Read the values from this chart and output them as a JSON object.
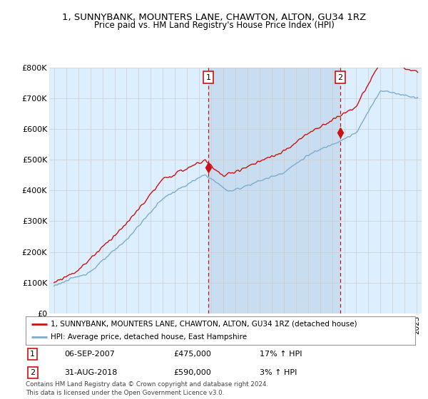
{
  "title": "1, SUNNYBANK, MOUNTERS LANE, CHAWTON, ALTON, GU34 1RZ",
  "subtitle": "Price paid vs. HM Land Registry's House Price Index (HPI)",
  "legend_line1": "1, SUNNYBANK, MOUNTERS LANE, CHAWTON, ALTON, GU34 1RZ (detached house)",
  "legend_line2": "HPI: Average price, detached house, East Hampshire",
  "annotation1_label": "1",
  "annotation1_date": "06-SEP-2007",
  "annotation1_price": "£475,000",
  "annotation1_hpi": "17% ↑ HPI",
  "annotation2_label": "2",
  "annotation2_date": "31-AUG-2018",
  "annotation2_price": "£590,000",
  "annotation2_hpi": "3% ↑ HPI",
  "footer": "Contains HM Land Registry data © Crown copyright and database right 2024.\nThis data is licensed under the Open Government Licence v3.0.",
  "hpi_color": "#7aadcf",
  "price_color": "#cc1111",
  "bg_color": "#ddeeff",
  "shade_color": "#c8ddf0",
  "grid_color": "#cccccc",
  "ylim": [
    0,
    800000
  ],
  "yticks": [
    0,
    100000,
    200000,
    300000,
    400000,
    500000,
    600000,
    700000,
    800000
  ],
  "ytick_labels": [
    "£0",
    "£100K",
    "£200K",
    "£300K",
    "£400K",
    "£500K",
    "£600K",
    "£700K",
    "£800K"
  ],
  "sale1_x": 2007.75,
  "sale1_y": 475000,
  "sale2_x": 2018.667,
  "sale2_y": 590000,
  "xlim_left": 1994.6,
  "xlim_right": 2025.4
}
